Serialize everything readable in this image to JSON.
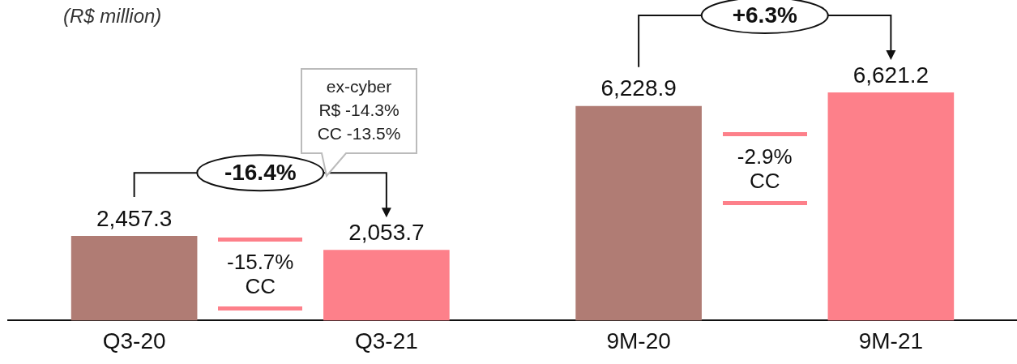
{
  "chart_data": {
    "type": "bar",
    "ylabel": "(R$ million)",
    "categories": [
      "Q3-20",
      "Q3-21",
      "9M-20",
      "9M-21"
    ],
    "values": [
      2457.3,
      2053.7,
      6228.9,
      6621.2
    ],
    "colors": [
      "#b07c74",
      "#fd808a",
      "#b07c74",
      "#fd808a"
    ],
    "value_labels": [
      "2,457.3",
      "2,053.7",
      "6,228.9",
      "6,621.2"
    ],
    "tick_labels": "x",
    "grid": false,
    "legend": false,
    "annotations": [
      "-16.4%",
      "+6.3%",
      "-15.7%\nCC",
      "-2.9%\nCC",
      "ex-cyber\nR$ -14.3%\nCC -13.5%"
    ]
  }
}
